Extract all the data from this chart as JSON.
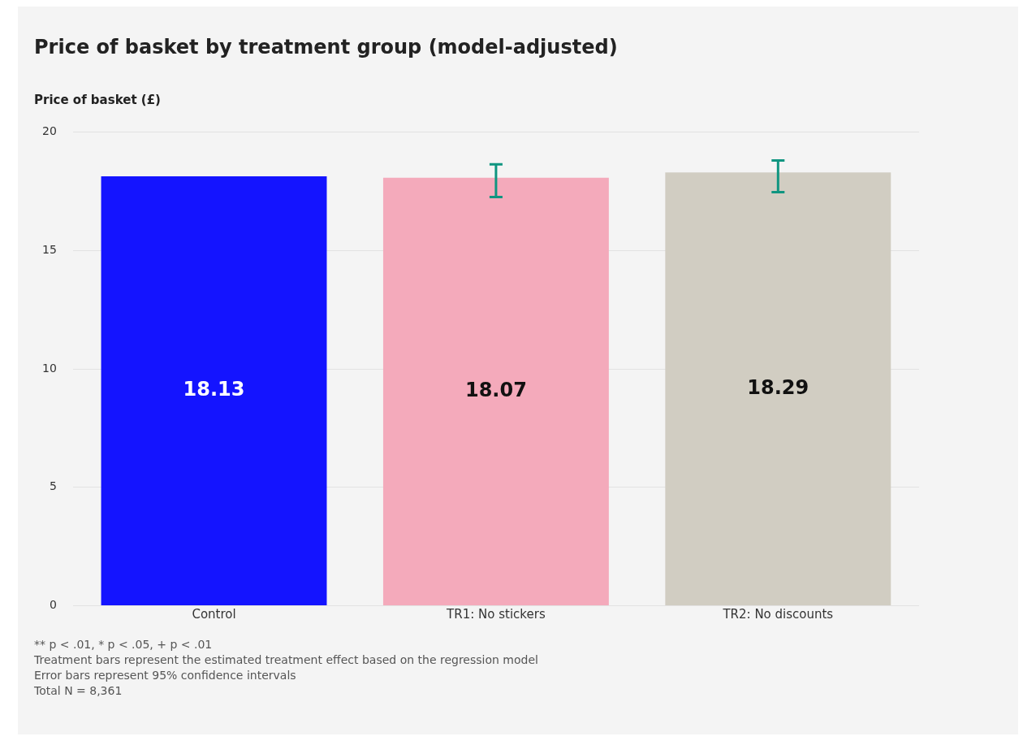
{
  "chart_data": {
    "type": "bar",
    "title": "Price of basket by treatment group (model-adjusted)",
    "ylabel": "Price of basket (£)",
    "categories": [
      "Control",
      "TR1: No stickers",
      "TR2: No discounts"
    ],
    "values": [
      18.13,
      18.07,
      18.29
    ],
    "colors": [
      "#1414ff",
      "#f4aabb",
      "#d1cdc2"
    ],
    "errors": [
      null,
      [
        17.25,
        18.63
      ],
      [
        17.46,
        18.8
      ]
    ],
    "data_labels": true,
    "ylim": [
      0,
      20
    ],
    "yticks": [
      0,
      5,
      10,
      15,
      20
    ],
    "grid": "y",
    "legend": false,
    "annotations": [
      "** p < .01, * p < .05, + p < .01",
      "Treatment bars represent the estimated treatment effect based on the regression model",
      "Error bars represent 95% confidence intervals",
      "Total N = 8,361"
    ]
  }
}
